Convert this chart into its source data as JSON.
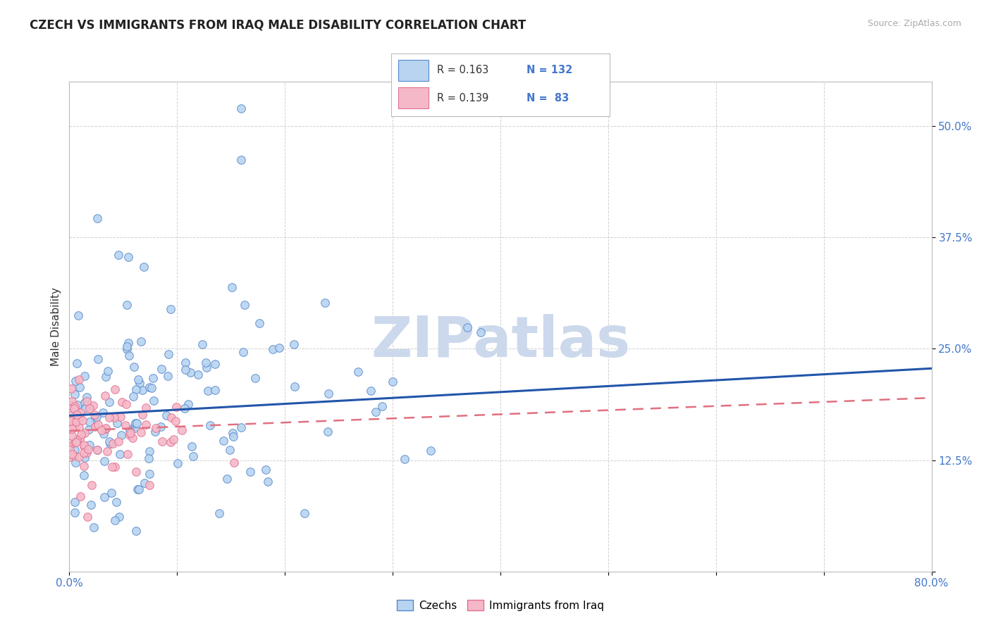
{
  "title": "CZECH VS IMMIGRANTS FROM IRAQ MALE DISABILITY CORRELATION CHART",
  "source_text": "Source: ZipAtlas.com",
  "ylabel": "Male Disability",
  "xlim": [
    0.0,
    0.8
  ],
  "ylim": [
    0.0,
    0.55
  ],
  "xticks": [
    0.0,
    0.1,
    0.2,
    0.3,
    0.4,
    0.5,
    0.6,
    0.7,
    0.8
  ],
  "xticklabels": [
    "0.0%",
    "",
    "",
    "",
    "",
    "",
    "",
    "",
    "80.0%"
  ],
  "yticks": [
    0.0,
    0.125,
    0.25,
    0.375,
    0.5
  ],
  "yticklabels": [
    "",
    "12.5%",
    "25.0%",
    "37.5%",
    "50.0%"
  ],
  "czech_R": 0.163,
  "czech_N": 132,
  "iraq_R": 0.139,
  "iraq_N": 83,
  "czech_color": "#b8d4f0",
  "czech_edge_color": "#5588cc",
  "iraq_color": "#f5b8c8",
  "iraq_edge_color": "#e07090",
  "czech_line_color": "#2255aa",
  "iraq_line_color": "#e07080",
  "iraq_line_dash": "dashed",
  "legend_text_color": "#4477cc",
  "title_color": "#222222",
  "tick_color": "#4477cc",
  "source_color": "#aaaaaa",
  "background_color": "#ffffff",
  "grid_color": "#cccccc",
  "watermark_text": "ZIPatlas",
  "watermark_color": "#ccd8ec",
  "czech_line_x0": 0.0,
  "czech_line_y0": 0.175,
  "czech_line_x1": 0.8,
  "czech_line_y1": 0.228,
  "iraq_line_x0": 0.0,
  "iraq_line_y0": 0.158,
  "iraq_line_x1": 0.8,
  "iraq_line_y1": 0.195
}
